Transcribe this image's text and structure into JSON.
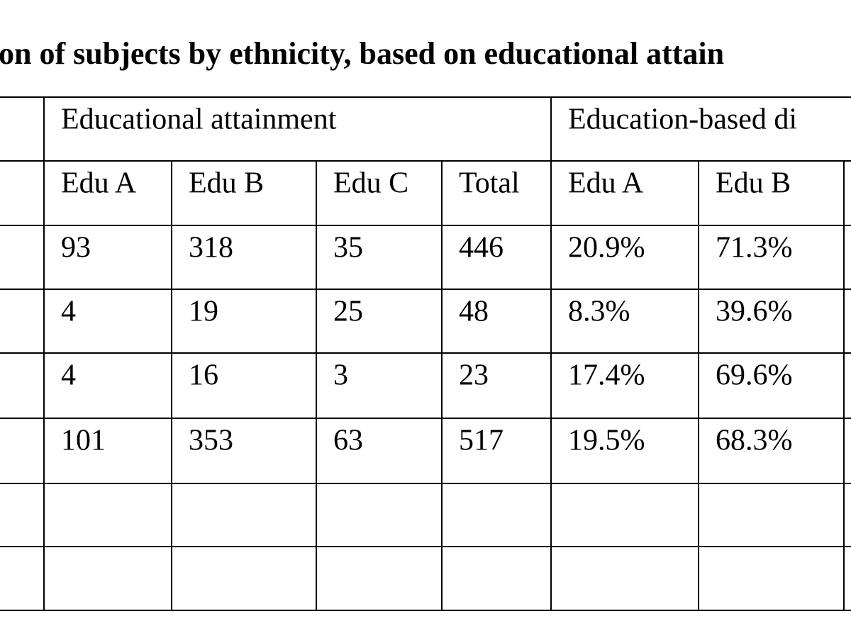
{
  "title": "on of subjects by ethnicity, based on educational attain",
  "table": {
    "group_headers": [
      "Educational attainment",
      "Education-based di"
    ],
    "columns": [
      "Edu A",
      "Edu B",
      "Edu C",
      "Total",
      "Edu A",
      "Edu B"
    ],
    "rows": [
      [
        93,
        318,
        35,
        446,
        "20.9%",
        "71.3%"
      ],
      [
        4,
        19,
        25,
        48,
        "8.3%",
        "39.6%"
      ],
      [
        4,
        16,
        3,
        23,
        "17.4%",
        "69.6%"
      ],
      [
        101,
        353,
        63,
        517,
        "19.5%",
        "68.3%"
      ]
    ]
  }
}
